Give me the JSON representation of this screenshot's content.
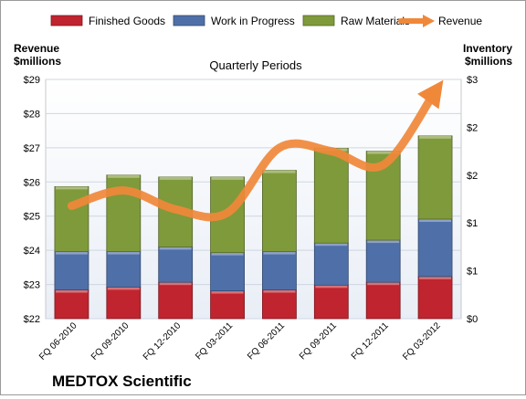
{
  "chart_data": {
    "type": "bar",
    "title": "Quarterly Periods",
    "footer_title": "MEDTOX Scientific",
    "ylabel_left": [
      "Revenue",
      "$millions"
    ],
    "ylabel_right": [
      "Inventory",
      "$millions"
    ],
    "categories": [
      "FQ 06-2010",
      "FQ 09-2010",
      "FQ 12-2010",
      "FQ 03-2011",
      "FQ 06-2011",
      "FQ 09-2011",
      "FQ 12-2011",
      "FQ 03-2012"
    ],
    "left_axis": {
      "min": 22,
      "max": 29,
      "ticks": [
        "$22",
        "$23",
        "$24",
        "$25",
        "$26",
        "$27",
        "$28",
        "$29"
      ]
    },
    "right_axis": {
      "min": 0,
      "max": 2.5,
      "ticks": [
        "$0",
        "$1",
        "$1",
        "$2",
        "$2",
        "$3"
      ]
    },
    "stacked_series": [
      {
        "name": "Finished Goods",
        "color": "#c0242e",
        "values": [
          0.3,
          0.33,
          0.38,
          0.29,
          0.3,
          0.35,
          0.38,
          0.44
        ]
      },
      {
        "name": "Work in Progress",
        "color": "#4f6fa8",
        "values": [
          0.4,
          0.37,
          0.37,
          0.4,
          0.4,
          0.44,
          0.44,
          0.6
        ]
      },
      {
        "name": "Raw Materials",
        "color": "#7f9a3a",
        "values": [
          0.68,
          0.8,
          0.73,
          0.79,
          0.85,
          0.99,
          0.93,
          0.87
        ]
      }
    ],
    "line_series": {
      "name": "Revenue",
      "color": "#f0883a",
      "values": [
        25.3,
        25.75,
        25.2,
        25.1,
        27.0,
        26.9,
        26.5,
        28.65
      ]
    },
    "legend_position": "top",
    "grid": true
  }
}
